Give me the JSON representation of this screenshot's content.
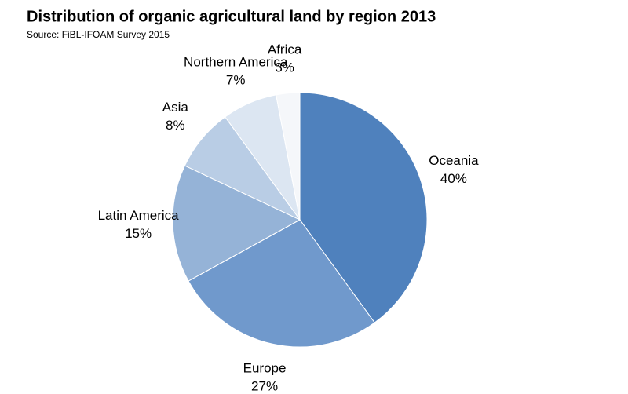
{
  "chart_data": {
    "type": "pie",
    "title": "Distribution of organic agricultural land by region 2013",
    "subtitle": "Source: FiBL-IFOAM Survey 2015",
    "categories": [
      "Oceania",
      "Europe",
      "Latin America",
      "Asia",
      "Northern America",
      "Africa"
    ],
    "values": [
      40,
      27,
      15,
      8,
      7,
      3
    ],
    "value_labels": [
      "40%",
      "27%",
      "15%",
      "8%",
      "7%",
      "3%"
    ],
    "colors": [
      "#4f81bd",
      "#7099cc",
      "#95b3d7",
      "#b9cde5",
      "#dce6f2",
      "#f5f7fa"
    ]
  }
}
